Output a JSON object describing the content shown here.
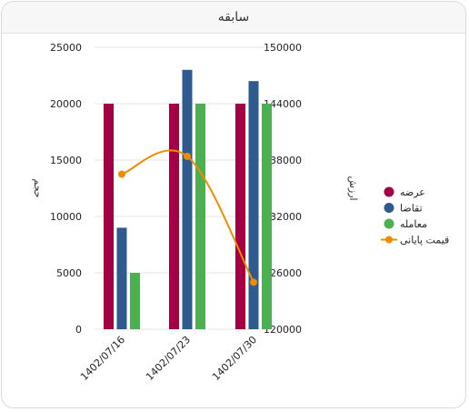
{
  "panel": {
    "title": "سابقه"
  },
  "chart_data": {
    "type": "bar",
    "title": "سابقه",
    "categories": [
      "1402/07/16",
      "1402/07/23",
      "1402/07/30"
    ],
    "series": [
      {
        "name": "عرضه",
        "type": "bar",
        "axis": "left",
        "color": "#a50044",
        "values": [
          20000,
          20000,
          20000
        ]
      },
      {
        "name": "تقاضا",
        "type": "bar",
        "axis": "left",
        "color": "#2f5a8e",
        "values": [
          9000,
          23000,
          22000
        ]
      },
      {
        "name": "معامله",
        "type": "bar",
        "axis": "left",
        "color": "#4caf50",
        "values": [
          5000,
          20000,
          20000
        ]
      },
      {
        "name": "قیمت پایانی",
        "type": "line",
        "axis": "right",
        "color": "#f08c00",
        "values": [
          136500,
          138400,
          125000
        ]
      }
    ],
    "y_left": {
      "label": "حجم",
      "ticks": [
        0,
        5000,
        10000,
        15000,
        20000,
        25000
      ],
      "range": [
        0,
        25000
      ]
    },
    "y_right": {
      "label": "ارزش",
      "ticks": [
        120000,
        126000,
        132000,
        138000,
        144000,
        150000
      ],
      "range": [
        120000,
        150000
      ]
    },
    "grid": true,
    "legend": "right"
  }
}
